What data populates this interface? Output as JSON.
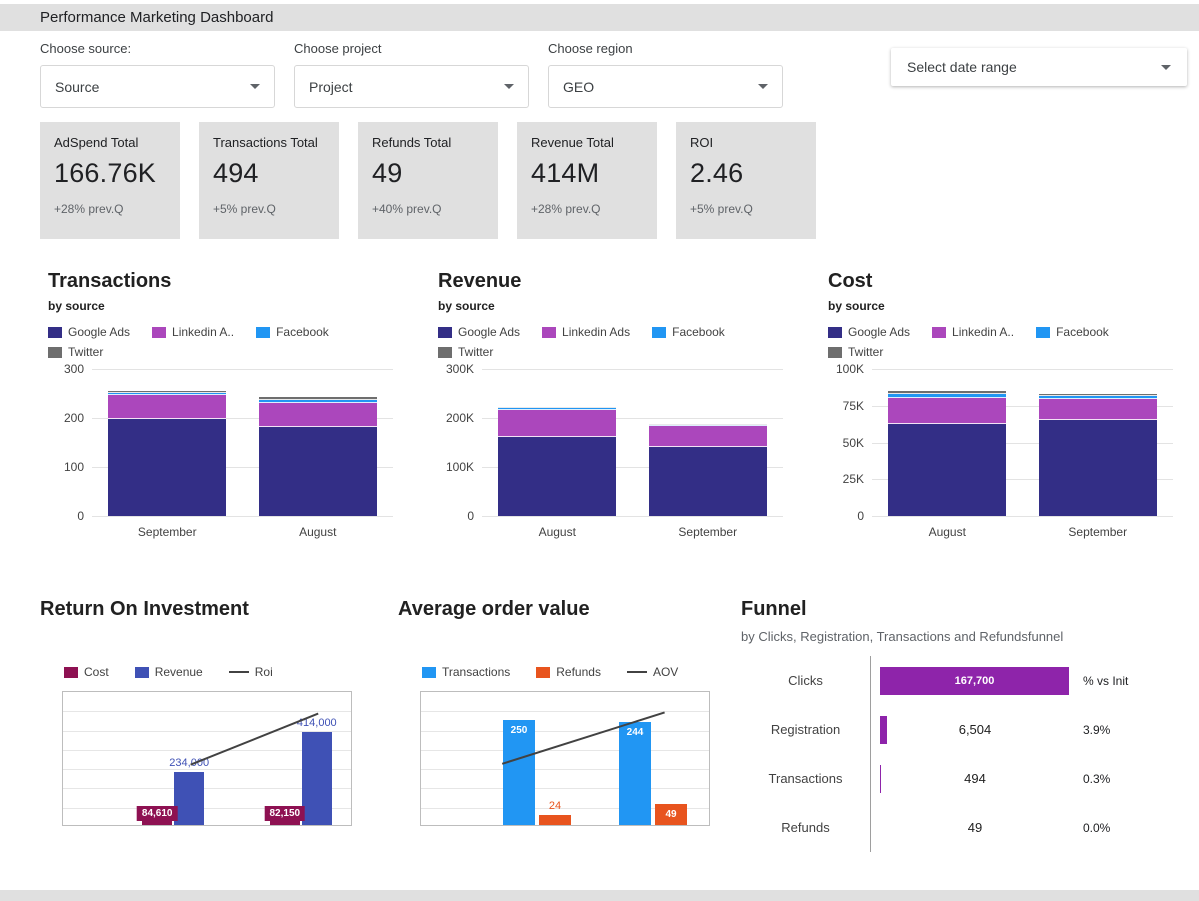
{
  "header": {
    "title": "Performance Marketing Dashboard"
  },
  "filters": {
    "source": {
      "label": "Choose source:",
      "value": "Source"
    },
    "project": {
      "label": "Choose project",
      "value": "Project"
    },
    "region": {
      "label": "Choose region",
      "value": "GEO"
    },
    "date_range": {
      "value": "Select date range"
    }
  },
  "scorecards": [
    {
      "title": "AdSpend Total",
      "value": "166.76K",
      "delta": "+28% prev.Q"
    },
    {
      "title": "Transactions Total",
      "value": "494",
      "delta": "+5% prev.Q"
    },
    {
      "title": "Refunds Total",
      "value": "49",
      "delta": "+40% prev.Q"
    },
    {
      "title": "Revenue Total",
      "value": "414M",
      "delta": "+28% prev.Q"
    },
    {
      "title": "ROI",
      "value": "2.46",
      "delta": "+5% prev.Q"
    }
  ],
  "chart_data": [
    {
      "id": "transactions",
      "type": "bar",
      "stacked": true,
      "title": "Transactions",
      "subtitle": "by source",
      "legend_position": "top",
      "categories": [
        "September",
        "August"
      ],
      "ylim": [
        0,
        300
      ],
      "yticks": [
        {
          "v": 0,
          "label": "0"
        },
        {
          "v": 100,
          "label": "100"
        },
        {
          "v": 200,
          "label": "200"
        },
        {
          "v": 300,
          "label": "300"
        }
      ],
      "series": [
        {
          "name": "Google Ads",
          "color": "#332e86",
          "values": [
            196,
            181
          ]
        },
        {
          "name": "Linkedin Ads",
          "legend_label": "Linkedin A..",
          "color": "#ab47bc",
          "values": [
            49,
            49
          ]
        },
        {
          "name": "Facebook",
          "color": "#2196f3",
          "values": [
            4,
            6
          ]
        },
        {
          "name": "Twitter",
          "color": "#6e6e6e",
          "values": [
            4,
            5
          ]
        }
      ]
    },
    {
      "id": "revenue",
      "type": "bar",
      "stacked": true,
      "title": "Revenue",
      "subtitle": "by source",
      "legend_position": "top",
      "categories": [
        "August",
        "September"
      ],
      "ylim": [
        0,
        300000
      ],
      "yticks": [
        {
          "v": 0,
          "label": "0"
        },
        {
          "v": 100000,
          "label": "100K"
        },
        {
          "v": 200000,
          "label": "200K"
        },
        {
          "v": 300000,
          "label": "300K"
        }
      ],
      "series": [
        {
          "name": "Google Ads",
          "color": "#332e86",
          "values": [
            160000,
            140000
          ]
        },
        {
          "name": "Linkedin Ads",
          "legend_label": "Linkedin Ads",
          "color": "#ab47bc",
          "values": [
            55000,
            42000
          ]
        },
        {
          "name": "Facebook",
          "color": "#2196f3",
          "values": [
            4000,
            2500
          ]
        },
        {
          "name": "Twitter",
          "color": "#6e6e6e",
          "values": [
            3000,
            2000
          ]
        }
      ]
    },
    {
      "id": "cost",
      "type": "bar",
      "stacked": true,
      "title": "Cost",
      "subtitle": "by source",
      "legend_position": "top",
      "categories": [
        "August",
        "September"
      ],
      "ylim": [
        0,
        100000
      ],
      "yticks": [
        {
          "v": 0,
          "label": "0"
        },
        {
          "v": 25000,
          "label": "25K"
        },
        {
          "v": 50000,
          "label": "50K"
        },
        {
          "v": 75000,
          "label": "75K"
        },
        {
          "v": 100000,
          "label": "100K"
        }
      ],
      "series": [
        {
          "name": "Google Ads",
          "color": "#332e86",
          "values": [
            62000,
            65000
          ]
        },
        {
          "name": "Linkedin Ads",
          "legend_label": "Linkedin A..",
          "color": "#ab47bc",
          "values": [
            18000,
            14000
          ]
        },
        {
          "name": "Facebook",
          "color": "#2196f3",
          "values": [
            2600,
            2000
          ]
        },
        {
          "name": "Twitter",
          "color": "#6e6e6e",
          "values": [
            2000,
            1150
          ]
        }
      ]
    },
    {
      "id": "roi",
      "type": "bar",
      "title": "Return On Investment",
      "legend_position": "top",
      "ylim": [
        0,
        600000
      ],
      "bar_series": [
        {
          "name": "Cost",
          "color": "#8e1152",
          "values": [
            84610,
            82150
          ],
          "labels": [
            "84,610",
            "82,150"
          ],
          "label_mode": "chip"
        },
        {
          "name": "Revenue",
          "color": "#3f51b5",
          "values": [
            234000,
            414000
          ],
          "labels": [
            "234,000",
            "414,000"
          ],
          "label_mode": "above"
        }
      ],
      "line_series": {
        "name": "Roi",
        "color": "#424242",
        "values": [
          2.77,
          5.04
        ],
        "axis": [
          0,
          6
        ]
      }
    },
    {
      "id": "aov",
      "type": "bar",
      "title": "Average order value",
      "legend_position": "top",
      "ylim": [
        0,
        320
      ],
      "bar_series": [
        {
          "name": "Transactions",
          "color": "#2196f3",
          "values": [
            250,
            244
          ],
          "labels": [
            "250",
            "244"
          ],
          "label_mode": "inside"
        },
        {
          "name": "Refunds",
          "color": "#e8541e",
          "values": [
            24,
            49
          ],
          "labels": [
            "24",
            "49"
          ],
          "label_mode": "auto"
        }
      ],
      "line_series": {
        "name": "AOV",
        "color": "#424242",
        "values": [
          936,
          1697
        ],
        "axis": [
          0,
          2000
        ]
      }
    },
    {
      "id": "funnel",
      "type": "bar",
      "subtype": "funnel",
      "title": "Funnel",
      "subtitle": "by Clicks, Registration, Transactions and Refundsfunnel",
      "pct_header": "% vs Init",
      "bar_color": "#8e24aa",
      "rows": [
        {
          "label": "Clicks",
          "value": "167,700",
          "num": 167700,
          "pct": ""
        },
        {
          "label": "Registration",
          "value": "6,504",
          "num": 6504,
          "pct": "3.9%"
        },
        {
          "label": "Transactions",
          "value": "494",
          "num": 494,
          "pct": "0.3%"
        },
        {
          "label": "Refunds",
          "value": "49",
          "num": 49,
          "pct": "0.0%"
        }
      ]
    }
  ]
}
